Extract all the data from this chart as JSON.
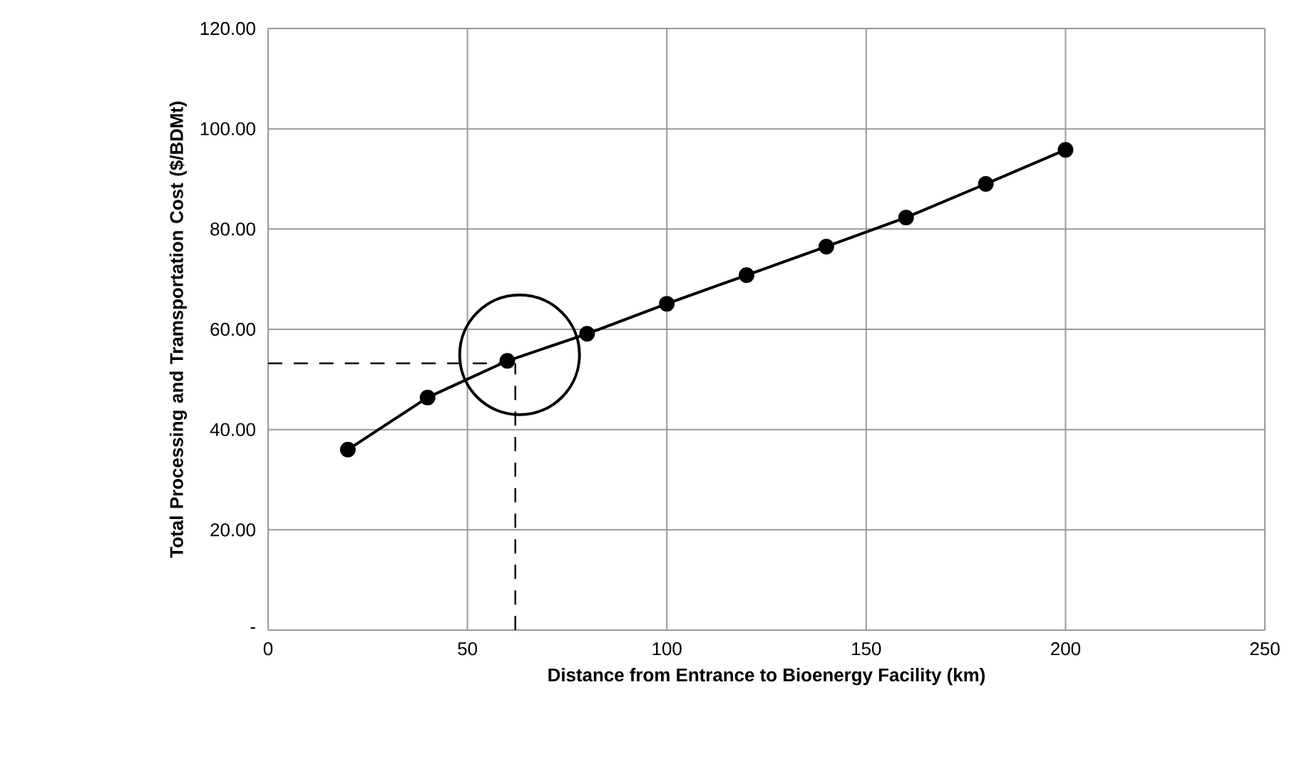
{
  "chart_data": {
    "type": "line",
    "xlabel": "Distance from Entrance to Bioenergy Facility (km)",
    "ylabel": "Total Processing and Tramsportation Cost ($/BDMt)",
    "x": [
      20,
      40,
      60,
      80,
      100,
      120,
      140,
      160,
      180,
      200
    ],
    "series": [
      {
        "color": "#000000",
        "values": [
          36.0,
          46.4,
          53.7,
          59.1,
          65.1,
          70.8,
          76.5,
          82.3,
          89.0,
          95.8
        ]
      }
    ],
    "xlim": [
      0,
      250
    ],
    "xticks": [
      0,
      50,
      100,
      150,
      200,
      250
    ],
    "ylim": [
      0,
      120
    ],
    "yticks": [
      {
        "value": 0,
        "label": "-"
      },
      {
        "value": 20,
        "label": "20.00"
      },
      {
        "value": 40,
        "label": "40.00"
      },
      {
        "value": 60,
        "label": "60.00"
      },
      {
        "value": 80,
        "label": "80.00"
      },
      {
        "value": 100,
        "label": "100.00"
      },
      {
        "value": 120,
        "label": "120.00"
      }
    ],
    "ref_lines": [
      {
        "axis": "x",
        "value": 62,
        "color": "#000000",
        "line_style": "dashed"
      },
      {
        "axis": "y",
        "value": 53.2,
        "color": "#000000",
        "line_style": "dashed"
      }
    ],
    "grid": true,
    "marker": "circle",
    "line_style": "solid"
  }
}
